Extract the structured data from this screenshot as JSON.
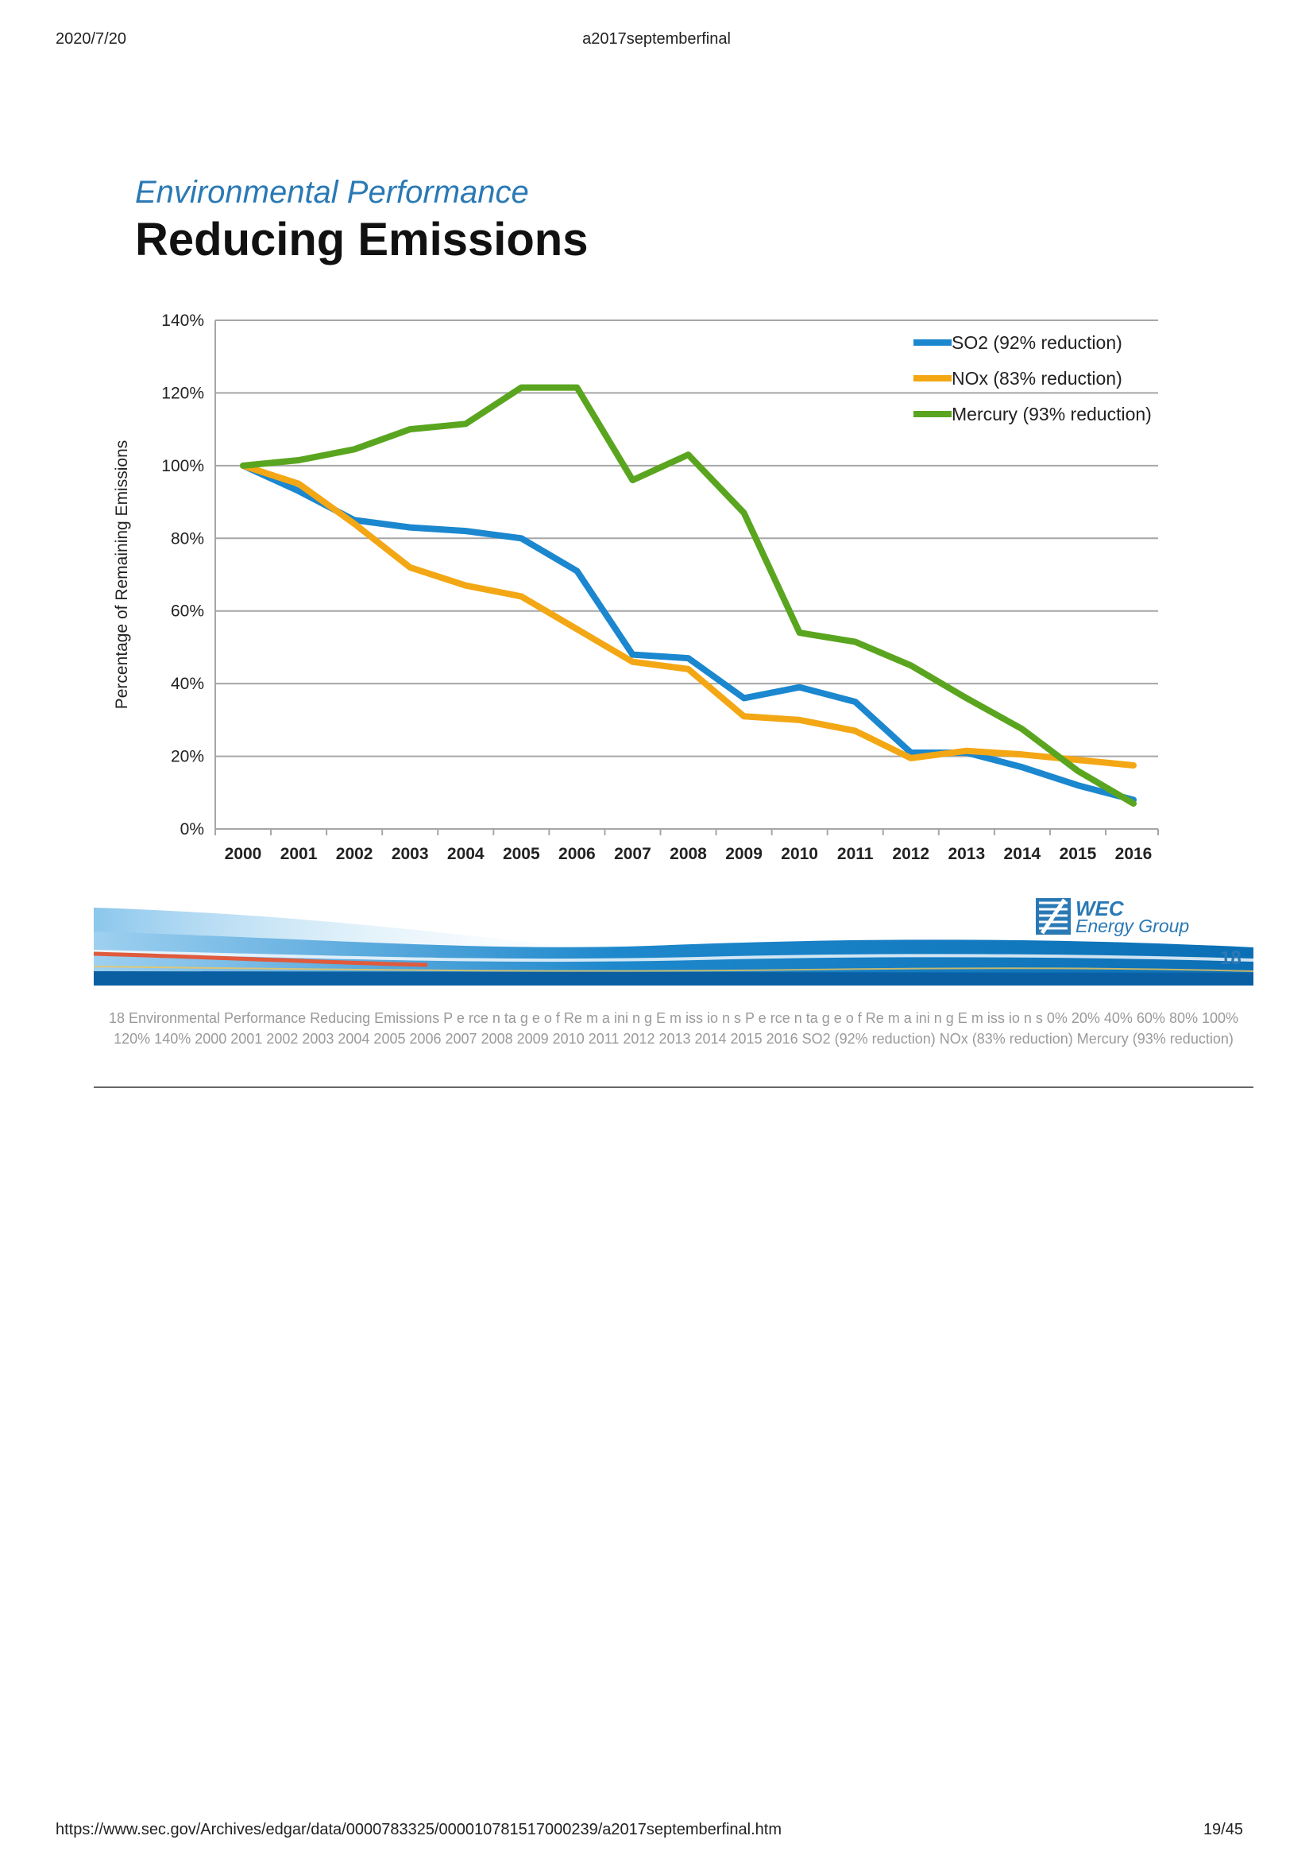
{
  "header": {
    "date": "2020/7/20",
    "doc_title": "a2017septemberfinal"
  },
  "footer": {
    "url": "https://www.sec.gov/Archives/edgar/data/0000783325/000010781517000239/a2017septemberfinal.htm",
    "page": "19/45"
  },
  "slide": {
    "subtitle": "Environmental Performance",
    "title": "Reducing Emissions",
    "number": "18",
    "logo": {
      "name": "WEC",
      "sub": "Energy Group"
    }
  },
  "alt_text": "18  Environmental Performance  Reducing Emissions  P e rce n ta g e o f  Re m a ini n g E m iss io n s  P e rce n ta g e o f  Re m a ini n g E m iss io n s  0% 20% 40% 60% 80% 100% 120% 140% 2000 2001 2002 2003 2004 2005 2006 2007 2008 2009 2010 2011 2012 2013 2014 2015 2016 SO2 (92% reduction) NOx (83% reduction) Mercury (93% reduction)",
  "colors": {
    "so2": "#1b87cf",
    "nox": "#f3a714",
    "mercury": "#5aa51f",
    "accent": "#2a79b5"
  },
  "chart_data": {
    "type": "line",
    "ylabel": "Percentage of Remaining Emissions",
    "xlabel": "",
    "ylim": [
      0,
      140
    ],
    "yticks": [
      "0%",
      "20%",
      "40%",
      "60%",
      "80%",
      "100%",
      "120%",
      "140%"
    ],
    "categories": [
      "2000",
      "2001",
      "2002",
      "2003",
      "2004",
      "2005",
      "2006",
      "2007",
      "2008",
      "2009",
      "2010",
      "2011",
      "2012",
      "2013",
      "2014",
      "2015",
      "2016"
    ],
    "legend_position": "top-right",
    "grid": true,
    "series": [
      {
        "name": "SO2 (92% reduction)",
        "color": "#1b87cf",
        "values": [
          100,
          93,
          85,
          83,
          82,
          80,
          71,
          48,
          47,
          36,
          39,
          35,
          21,
          21,
          17,
          12,
          8
        ]
      },
      {
        "name": "NOx (83% reduction)",
        "color": "#f3a714",
        "values": [
          100,
          95,
          84,
          72,
          67,
          64,
          55,
          46,
          44,
          31,
          30,
          27,
          19.5,
          21.5,
          20.5,
          19,
          17.5
        ]
      },
      {
        "name": "Mercury (93% reduction)",
        "color": "#5aa51f",
        "values": [
          100,
          101.5,
          104.5,
          110,
          111.5,
          121.5,
          121.5,
          96,
          103,
          87,
          54,
          51.5,
          45,
          36,
          27.5,
          16,
          7
        ]
      }
    ]
  }
}
